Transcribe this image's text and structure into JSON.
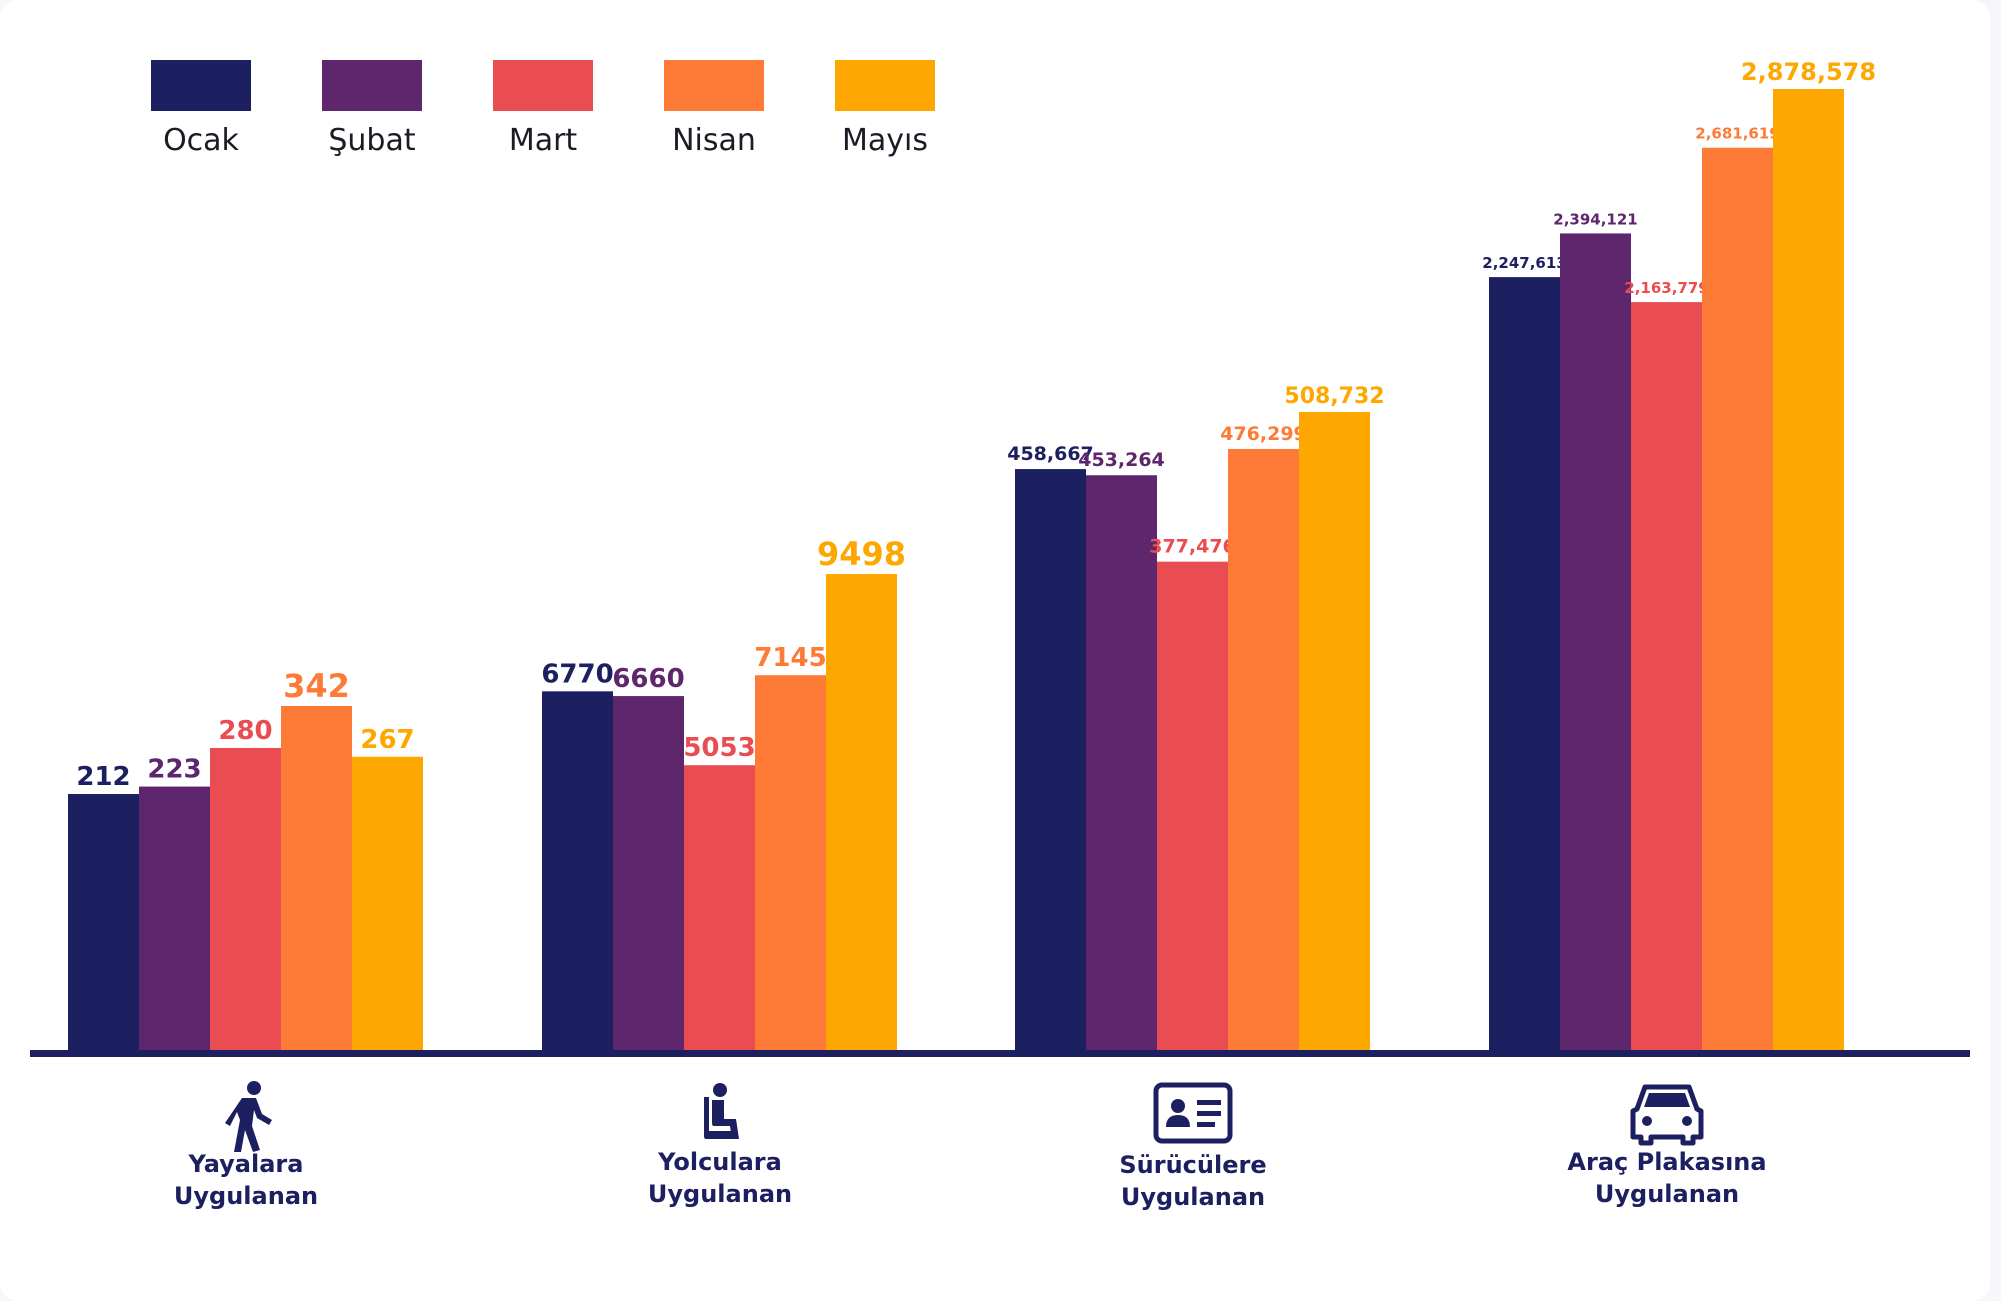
{
  "chart_data": {
    "type": "bar",
    "categories": [
      [
        "Yayalara",
        "Uygulanan"
      ],
      [
        "Yolculara",
        "Uygulanan"
      ],
      [
        "Sürücülere",
        "Uygulanan"
      ],
      [
        "Araç Plakasına",
        "Uygulanan"
      ]
    ],
    "category_icons": [
      "pedestrian-icon",
      "seated-passenger-icon",
      "id-card-icon",
      "car-icon"
    ],
    "series": [
      {
        "name": "Ocak",
        "color": "#1c2060",
        "values": [
          212,
          6770,
          458667,
          2247613
        ],
        "labels": [
          "212",
          "6770",
          "458,667",
          "2,247,613"
        ]
      },
      {
        "name": "Şubat",
        "color": "#5e266c",
        "values": [
          223,
          6660,
          453264,
          2394121
        ],
        "labels": [
          "223",
          "6660",
          "453,264",
          "2,394,121"
        ]
      },
      {
        "name": "Mart",
        "color": "#ea4d51",
        "values": [
          280,
          5053,
          377476,
          2163779
        ],
        "labels": [
          "280",
          "5053",
          "377,476",
          "2,163,779"
        ]
      },
      {
        "name": "Nisan",
        "color": "#fe7b37",
        "values": [
          342,
          7145,
          476299,
          2681619
        ],
        "labels": [
          "342",
          "7145",
          "476,299",
          "2,681,619"
        ]
      },
      {
        "name": "Mayıs",
        "color": "#fea700",
        "values": [
          267,
          9498,
          508732,
          2878578
        ],
        "labels": [
          "267",
          "9498",
          "508,732",
          "2,878,578"
        ]
      }
    ],
    "scale": "independent per category group (no value axis shown)",
    "axis_color": "#1c2060",
    "legend": "top-left",
    "grid": false,
    "title": "",
    "xlabel": "",
    "ylabel": ""
  }
}
